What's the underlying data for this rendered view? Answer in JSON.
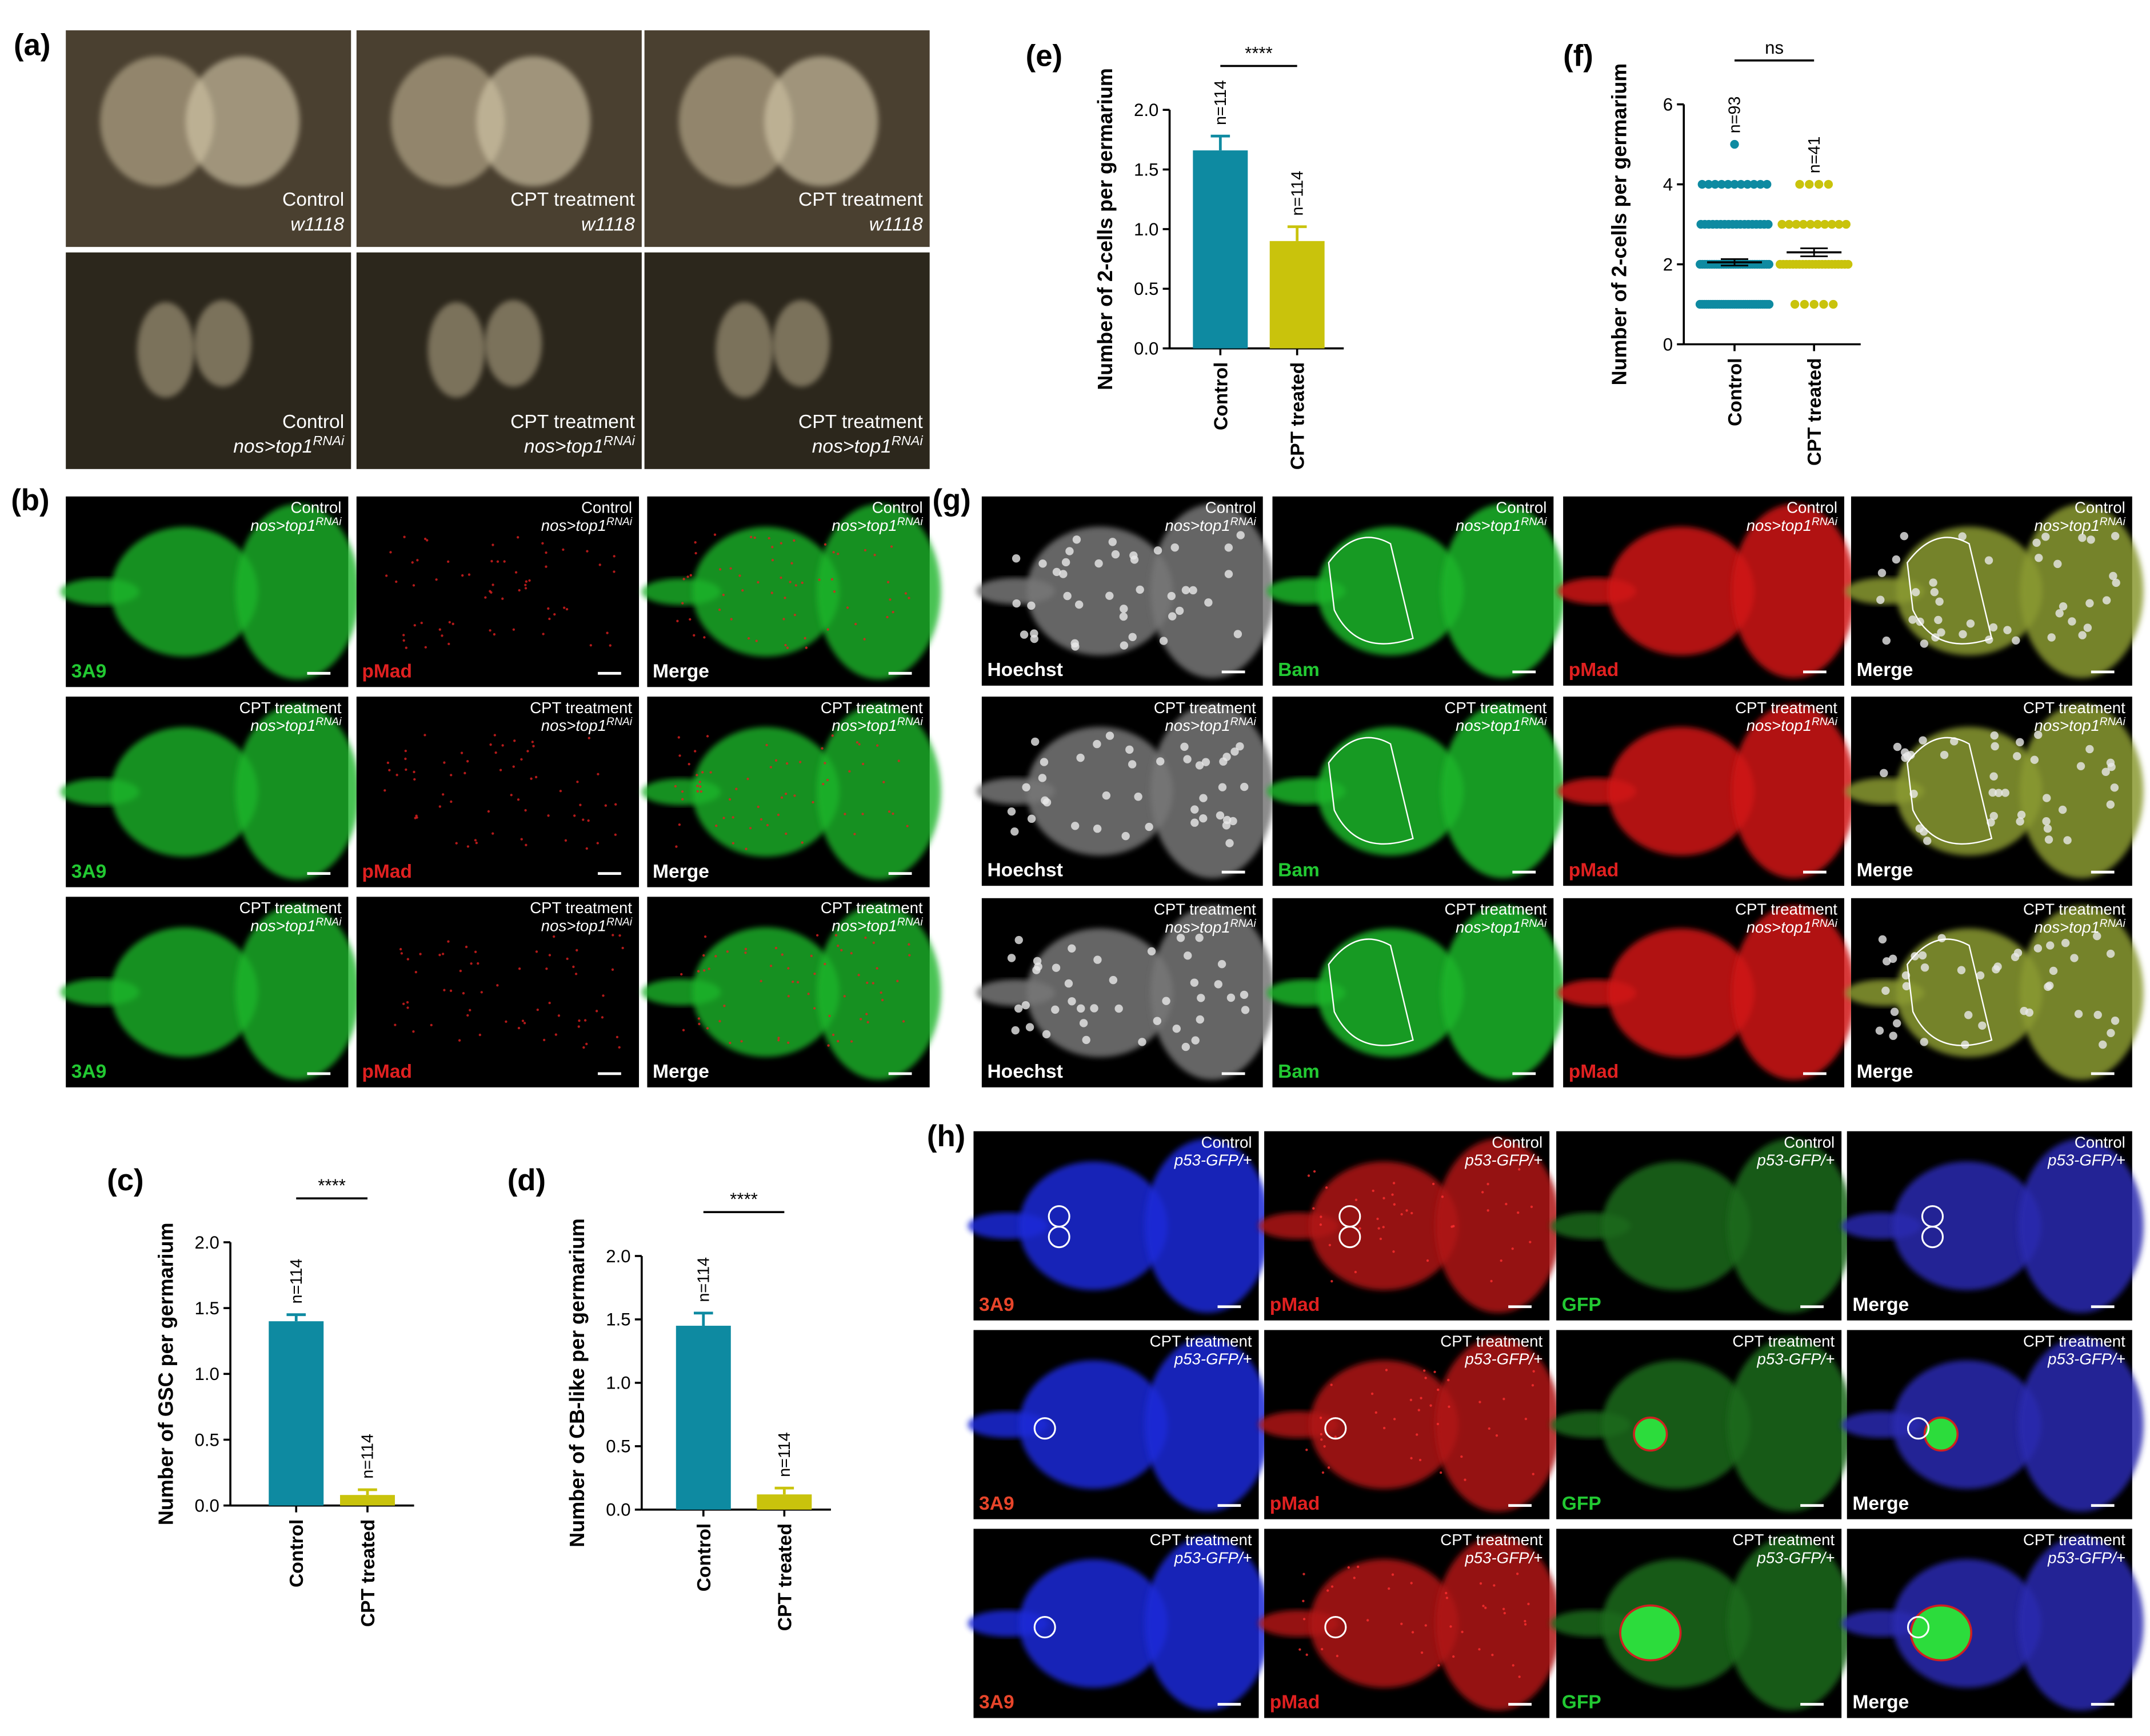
{
  "panel_labels": [
    "(a)",
    "(b)",
    "(c)",
    "(d)",
    "(e)",
    "(f)",
    "(g)",
    "(h)"
  ],
  "panel_a": {
    "images": [
      {
        "condition": "Control",
        "genotype": "w1118"
      },
      {
        "condition": "CPT treatment",
        "genotype": "w1118"
      },
      {
        "condition": "CPT treatment",
        "genotype": "w1118"
      },
      {
        "condition": "Control",
        "genotype": "nos>top1",
        "genotype_sup": "RNAi"
      },
      {
        "condition": "CPT treatment",
        "genotype": "nos>top1",
        "genotype_sup": "RNAi"
      },
      {
        "condition": "CPT treatment",
        "genotype": "nos>top1",
        "genotype_sup": "RNAi"
      }
    ]
  },
  "panel_b": {
    "rows": [
      {
        "condition": "Control",
        "genotype": "nos>top1",
        "genotype_sup": "RNAi"
      },
      {
        "condition": "CPT treatment",
        "genotype": "nos>top1",
        "genotype_sup": "RNAi"
      },
      {
        "condition": "CPT treatment",
        "genotype": "nos>top1",
        "genotype_sup": "RNAi"
      }
    ],
    "channels": [
      "3A9",
      "pMad",
      "Merge"
    ]
  },
  "panel_g": {
    "rows": [
      {
        "condition": "Control",
        "genotype": "nos>top1",
        "genotype_sup": "RNAi"
      },
      {
        "condition": "CPT treatment",
        "genotype": "nos>top1",
        "genotype_sup": "RNAi"
      },
      {
        "condition": "CPT treatment",
        "genotype": "nos>top1",
        "genotype_sup": "RNAi"
      }
    ],
    "channels": [
      "Hoechst",
      "Bam",
      "pMad",
      "Merge"
    ]
  },
  "panel_h": {
    "rows": [
      {
        "condition": "Control",
        "genotype": "p53-GFP/+"
      },
      {
        "condition": "CPT treatment",
        "genotype": "p53-GFP/+"
      },
      {
        "condition": "CPT treatment",
        "genotype": "p53-GFP/+"
      }
    ],
    "channels": [
      "3A9",
      "pMad",
      "GFP",
      "Merge"
    ]
  },
  "chart_data": [
    {
      "type": "bar",
      "ylabel": "Number of GSC per germarium",
      "categories": [
        "Control",
        "CPT treated"
      ],
      "values": [
        1.4,
        0.08
      ],
      "errors": [
        0.05,
        0.04
      ],
      "colors": [
        "#0e8aa1",
        "#c9c30c"
      ],
      "ylim": [
        0,
        2
      ],
      "yticks": [
        {
          "value": 0,
          "label": "0.0"
        },
        0.5,
        {
          "value": 1,
          "label": "1.0"
        },
        1.5,
        {
          "value": 2,
          "label": "2.0"
        }
      ],
      "n_labels": [
        "n=114",
        "n=114"
      ],
      "significance": "****"
    },
    {
      "type": "bar",
      "ylabel": "Number of CB-like per germarium",
      "categories": [
        "Control",
        "CPT treated"
      ],
      "values": [
        1.45,
        0.12
      ],
      "errors": [
        0.1,
        0.05
      ],
      "colors": [
        "#0e8aa1",
        "#c9c30c"
      ],
      "ylim": [
        0,
        2
      ],
      "yticks": [
        {
          "value": 0,
          "label": "0.0"
        },
        0.5,
        {
          "value": 1,
          "label": "1.0"
        },
        1.5,
        {
          "value": 2,
          "label": "2.0"
        }
      ],
      "n_labels": [
        "n=114",
        "n=114"
      ],
      "significance": "****"
    },
    {
      "type": "bar",
      "ylabel": "Number of 2-cells per germarium",
      "categories": [
        "Control",
        "CPT treated"
      ],
      "values": [
        1.66,
        0.9
      ],
      "errors": [
        0.12,
        0.12
      ],
      "colors": [
        "#0e8aa1",
        "#c9c30c"
      ],
      "ylim": [
        0,
        2
      ],
      "yticks": [
        {
          "value": 0,
          "label": "0.0"
        },
        0.5,
        {
          "value": 1,
          "label": "1.0"
        },
        1.5,
        {
          "value": 2,
          "label": "2.0"
        }
      ],
      "n_labels": [
        "n=114",
        "n=114"
      ],
      "significance": "****"
    },
    {
      "type": "dot",
      "ylabel": "Number of 2-cells per germarium",
      "categories": [
        "Control",
        "CPT treated"
      ],
      "values": [
        [
          1,
          1,
          1,
          1,
          1,
          1,
          1,
          1,
          1,
          1,
          1,
          1,
          1,
          1,
          1,
          1,
          1,
          1,
          1,
          1,
          1,
          1,
          1,
          1,
          1,
          1,
          1,
          1,
          1,
          1,
          1,
          1,
          1,
          2,
          2,
          2,
          2,
          2,
          2,
          2,
          2,
          2,
          2,
          2,
          2,
          2,
          2,
          2,
          2,
          2,
          2,
          2,
          2,
          2,
          2,
          2,
          2,
          2,
          2,
          2,
          2,
          2,
          2,
          3,
          3,
          3,
          3,
          3,
          3,
          3,
          3,
          3,
          3,
          3,
          3,
          3,
          3,
          3,
          3,
          3,
          3,
          4,
          4,
          4,
          4,
          4,
          4,
          4,
          4,
          4,
          4,
          4,
          5
        ],
        [
          1,
          1,
          1,
          1,
          1,
          2,
          2,
          2,
          2,
          2,
          2,
          2,
          2,
          2,
          2,
          2,
          2,
          2,
          2,
          2,
          2,
          2,
          2,
          2,
          2,
          2,
          2,
          3,
          3,
          3,
          3,
          3,
          3,
          3,
          3,
          3,
          3,
          4,
          4,
          4,
          4
        ]
      ],
      "mean": [
        2.05,
        2.3
      ],
      "errors": [
        0.08,
        0.1
      ],
      "colors": [
        "#0e8aa1",
        "#c9c30c"
      ],
      "ylim": [
        0,
        6
      ],
      "yticks": [
        0,
        2,
        4,
        6
      ],
      "n_labels": [
        "n=93",
        "n=41"
      ],
      "significance": "ns"
    }
  ]
}
